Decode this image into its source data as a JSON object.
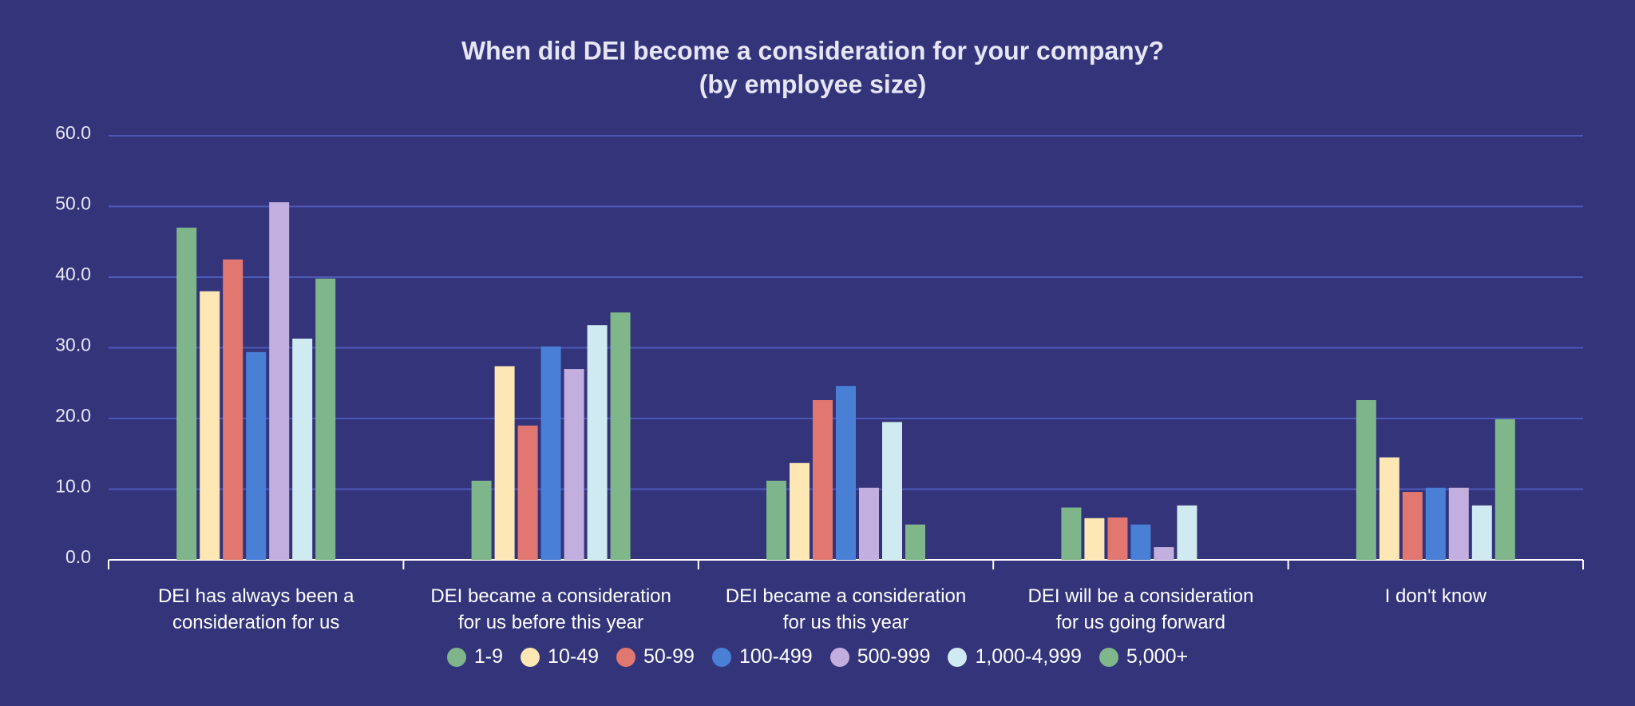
{
  "chart_data": {
    "type": "bar",
    "title": "When did DEI become a consideration for your company?",
    "subtitle": "(by employee size)",
    "categories": [
      "DEI has always been a\nconsideration for us",
      "DEI became a consideration\nfor us before this year",
      "DEI became a consideration\nfor us this year",
      "DEI will be a consideration\nfor us going forward",
      "I don't know"
    ],
    "series": [
      {
        "name": "1-9",
        "color": "#7fb58a",
        "values": [
          47.0,
          11.2,
          11.2,
          7.4,
          22.6
        ]
      },
      {
        "name": "10-49",
        "color": "#fde7b4",
        "values": [
          38.0,
          27.4,
          13.7,
          5.9,
          14.5
        ]
      },
      {
        "name": "50-99",
        "color": "#e27772",
        "values": [
          42.5,
          19.0,
          22.6,
          6.0,
          9.6
        ]
      },
      {
        "name": "100-499",
        "color": "#4a7fd6",
        "values": [
          29.4,
          30.2,
          24.6,
          5.0,
          10.2
        ]
      },
      {
        "name": "500-999",
        "color": "#c3aee0",
        "values": [
          50.6,
          27.0,
          10.2,
          1.8,
          10.2
        ]
      },
      {
        "name": "1,000-4,999",
        "color": "#cfeaf0",
        "values": [
          31.3,
          33.2,
          19.5,
          7.7,
          7.7
        ]
      },
      {
        "name": "5,000+",
        "color": "#80b78a",
        "values": [
          39.8,
          35.0,
          5.0,
          null,
          19.9
        ]
      }
    ],
    "ylim": [
      0,
      60
    ],
    "yticks": [
      {
        "value": 0,
        "label": "0.0"
      },
      {
        "value": 10,
        "label": "10.0"
      },
      {
        "value": 20,
        "label": "20.0"
      },
      {
        "value": 30,
        "label": "30.0"
      },
      {
        "value": 40,
        "label": "40.0"
      },
      {
        "value": 50,
        "label": "50.0"
      },
      {
        "value": 60,
        "label": "60.0"
      }
    ],
    "grid": true
  }
}
